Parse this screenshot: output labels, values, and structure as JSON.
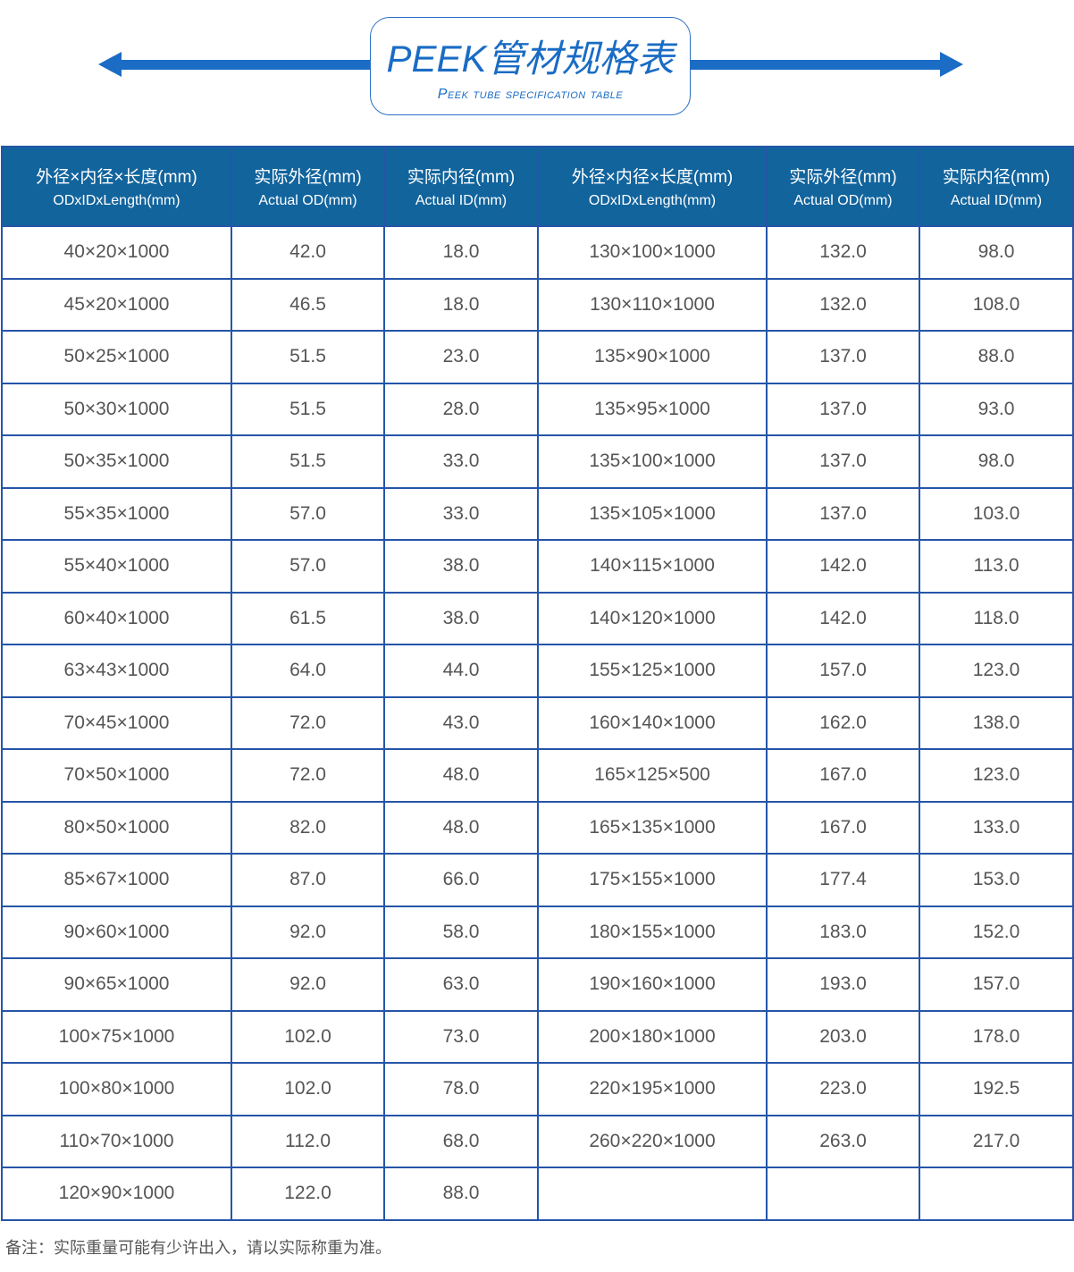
{
  "title": {
    "main": "PEEK管材规格表",
    "sub": "Peek tube specification table"
  },
  "colors": {
    "accent": "#1a6cc4",
    "header_bg": "#12649d",
    "border": "#2555a8"
  },
  "table": {
    "headers": [
      {
        "cn": "外径×内径×长度(mm)",
        "en": "ODxIDxLength(mm)"
      },
      {
        "cn": "实际外径(mm)",
        "en": "Actual OD(mm)"
      },
      {
        "cn": "实际内径(mm)",
        "en": "Actual ID(mm)"
      },
      {
        "cn": "外径×内径×长度(mm)",
        "en": "ODxIDxLength(mm)"
      },
      {
        "cn": "实际外径(mm)",
        "en": "Actual OD(mm)"
      },
      {
        "cn": "实际内径(mm)",
        "en": "Actual ID(mm)"
      }
    ],
    "rows": [
      [
        "40×20×1000",
        "42.0",
        "18.0",
        "130×100×1000",
        "132.0",
        "98.0"
      ],
      [
        "45×20×1000",
        "46.5",
        "18.0",
        "130×110×1000",
        "132.0",
        "108.0"
      ],
      [
        "50×25×1000",
        "51.5",
        "23.0",
        "135×90×1000",
        "137.0",
        "88.0"
      ],
      [
        "50×30×1000",
        "51.5",
        "28.0",
        "135×95×1000",
        "137.0",
        "93.0"
      ],
      [
        "50×35×1000",
        "51.5",
        "33.0",
        "135×100×1000",
        "137.0",
        "98.0"
      ],
      [
        "55×35×1000",
        "57.0",
        "33.0",
        "135×105×1000",
        "137.0",
        "103.0"
      ],
      [
        "55×40×1000",
        "57.0",
        "38.0",
        "140×115×1000",
        "142.0",
        "113.0"
      ],
      [
        "60×40×1000",
        "61.5",
        "38.0",
        "140×120×1000",
        "142.0",
        "118.0"
      ],
      [
        "63×43×1000",
        "64.0",
        "44.0",
        "155×125×1000",
        "157.0",
        "123.0"
      ],
      [
        "70×45×1000",
        "72.0",
        "43.0",
        "160×140×1000",
        "162.0",
        "138.0"
      ],
      [
        "70×50×1000",
        "72.0",
        "48.0",
        "165×125×500",
        "167.0",
        "123.0"
      ],
      [
        "80×50×1000",
        "82.0",
        "48.0",
        "165×135×1000",
        "167.0",
        "133.0"
      ],
      [
        "85×67×1000",
        "87.0",
        "66.0",
        "175×155×1000",
        "177.4",
        "153.0"
      ],
      [
        "90×60×1000",
        "92.0",
        "58.0",
        "180×155×1000",
        "183.0",
        "152.0"
      ],
      [
        "90×65×1000",
        "92.0",
        "63.0",
        "190×160×1000",
        "193.0",
        "157.0"
      ],
      [
        "100×75×1000",
        "102.0",
        "73.0",
        "200×180×1000",
        "203.0",
        "178.0"
      ],
      [
        "100×80×1000",
        "102.0",
        "78.0",
        "220×195×1000",
        "223.0",
        "192.5"
      ],
      [
        "110×70×1000",
        "112.0",
        "68.0",
        "260×220×1000",
        "263.0",
        "217.0"
      ],
      [
        "120×90×1000",
        "122.0",
        "88.0",
        "",
        "",
        ""
      ]
    ]
  },
  "note": "备注：实际重量可能有少许出入，请以实际称重为准。"
}
